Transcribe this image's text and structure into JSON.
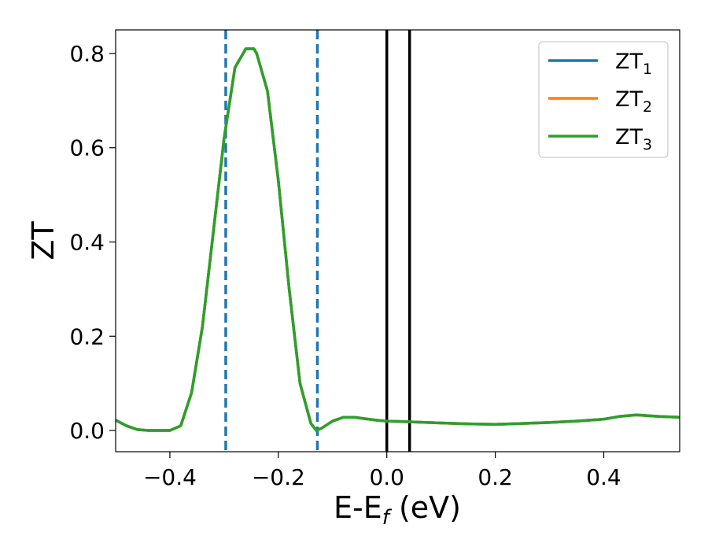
{
  "chart_data": {
    "type": "line",
    "title": "",
    "xlabel_main": "E-E",
    "xlabel_sub": "f",
    "xlabel_unit": " (eV)",
    "ylabel": "ZT",
    "xlim": [
      -0.5,
      0.54
    ],
    "ylim": [
      -0.045,
      0.85
    ],
    "x_ticks": [
      -0.4,
      -0.2,
      0.0,
      0.2,
      0.4
    ],
    "x_tick_labels": [
      "−0.4",
      "−0.2",
      "0.0",
      "0.2",
      "0.4"
    ],
    "y_ticks": [
      0.0,
      0.2,
      0.4,
      0.6,
      0.8
    ],
    "y_tick_labels": [
      "0.0",
      "0.2",
      "0.4",
      "0.6",
      "0.8"
    ],
    "grid": false,
    "legend_position": "top-right",
    "x": [
      -0.5,
      -0.48,
      -0.46,
      -0.44,
      -0.42,
      -0.4,
      -0.38,
      -0.36,
      -0.34,
      -0.32,
      -0.3,
      -0.28,
      -0.26,
      -0.25,
      -0.245,
      -0.24,
      -0.22,
      -0.2,
      -0.18,
      -0.16,
      -0.14,
      -0.13,
      -0.12,
      -0.1,
      -0.08,
      -0.06,
      -0.04,
      -0.02,
      0.0,
      0.05,
      0.1,
      0.15,
      0.2,
      0.25,
      0.3,
      0.35,
      0.4,
      0.43,
      0.46,
      0.5,
      0.54
    ],
    "series": [
      {
        "name_main": "ZT",
        "name_sub": "1",
        "color": "#1f77b4",
        "values": [
          0.022,
          0.01,
          0.002,
          0.0,
          0.0,
          0.0,
          0.01,
          0.08,
          0.22,
          0.42,
          0.62,
          0.77,
          0.81,
          0.81,
          0.81,
          0.8,
          0.72,
          0.53,
          0.3,
          0.1,
          0.015,
          0.0,
          0.005,
          0.02,
          0.028,
          0.028,
          0.025,
          0.022,
          0.02,
          0.018,
          0.016,
          0.014,
          0.013,
          0.015,
          0.017,
          0.02,
          0.024,
          0.03,
          0.033,
          0.03,
          0.028
        ]
      },
      {
        "name_main": "ZT",
        "name_sub": "2",
        "color": "#ff7f0e",
        "values": [
          0.022,
          0.01,
          0.002,
          0.0,
          0.0,
          0.0,
          0.01,
          0.08,
          0.22,
          0.42,
          0.62,
          0.77,
          0.81,
          0.81,
          0.81,
          0.8,
          0.72,
          0.53,
          0.3,
          0.1,
          0.015,
          0.0,
          0.005,
          0.02,
          0.028,
          0.028,
          0.025,
          0.022,
          0.02,
          0.018,
          0.016,
          0.014,
          0.013,
          0.015,
          0.017,
          0.02,
          0.024,
          0.03,
          0.033,
          0.03,
          0.028
        ]
      },
      {
        "name_main": "ZT",
        "name_sub": "3",
        "color": "#2ca02c",
        "values": [
          0.022,
          0.01,
          0.002,
          0.0,
          0.0,
          0.0,
          0.01,
          0.08,
          0.22,
          0.42,
          0.62,
          0.77,
          0.81,
          0.81,
          0.81,
          0.8,
          0.72,
          0.53,
          0.3,
          0.1,
          0.015,
          0.0,
          0.005,
          0.02,
          0.028,
          0.028,
          0.025,
          0.022,
          0.02,
          0.018,
          0.016,
          0.014,
          0.013,
          0.015,
          0.017,
          0.02,
          0.024,
          0.03,
          0.033,
          0.03,
          0.028
        ]
      }
    ],
    "vertical_lines": [
      {
        "x": -0.297,
        "style": "dashed",
        "color": "#1f77b4"
      },
      {
        "x": -0.128,
        "style": "dashed",
        "color": "#1f77b4"
      },
      {
        "x": 0.0,
        "style": "solid",
        "color": "#000000"
      },
      {
        "x": 0.042,
        "style": "solid",
        "color": "#000000"
      }
    ]
  }
}
